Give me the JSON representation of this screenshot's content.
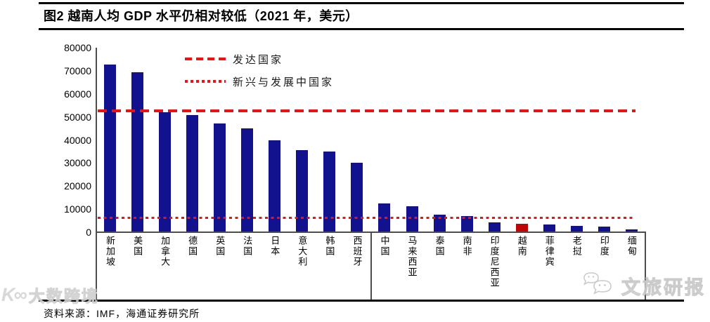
{
  "title": "图2  越南人均 GDP 水平仍相对较低（2021 年，美元）",
  "source": "资料来源：IMF，海通证券研究所",
  "watermarks": {
    "bottom_left": "大数跨境",
    "bottom_right": "文旅研报",
    "bottom_right_icon": "wechat-bubbles-icon",
    "bottom_left_icon": "k-infinity-logo-icon"
  },
  "chart_data": {
    "type": "bar",
    "title": "越南人均 GDP 水平仍相对较低（2021 年，美元）",
    "categories": [
      "新加坡",
      "美国",
      "加拿大",
      "德国",
      "英国",
      "法国",
      "日本",
      "意大利",
      "韩国",
      "西班牙",
      "中国",
      "马来西亚",
      "泰国",
      "南非",
      "印度尼西亚",
      "越南",
      "菲律宾",
      "老挝",
      "印度",
      "缅甸"
    ],
    "values": [
      72800,
      69300,
      52000,
      50800,
      47300,
      44900,
      39800,
      35700,
      35000,
      30100,
      12600,
      11400,
      7700,
      7000,
      4400,
      3800,
      3500,
      2600,
      2300,
      1200
    ],
    "xlabel": "",
    "ylabel": "",
    "ylim": [
      0,
      80000
    ],
    "yticks": [
      0,
      10000,
      20000,
      30000,
      40000,
      50000,
      60000,
      70000,
      80000
    ],
    "grid": false,
    "legend_position": "top-left-inside",
    "bar_color": "#12128F",
    "highlight_index": 15,
    "highlight_category": "越南",
    "highlight_color": "#C00505",
    "group_divider_after_index": 9,
    "reference_lines": [
      {
        "label": "发达国家",
        "value": 52500,
        "style": "dashed",
        "color": "#ED1111"
      },
      {
        "label": "新兴与发展中国家",
        "value": 6200,
        "style": "dotted",
        "color": "#ED1111"
      }
    ]
  }
}
